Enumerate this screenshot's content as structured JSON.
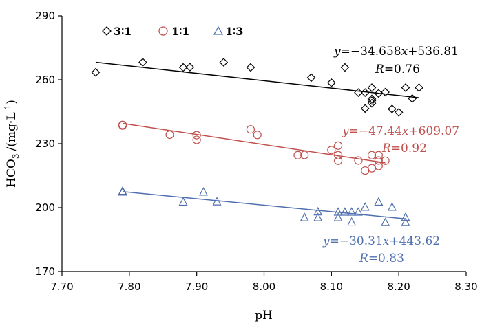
{
  "chart_data": {
    "type": "scatter",
    "title": "",
    "xlabel": "pH",
    "ylabel": "HCO3-/(mg·L-1)",
    "ylabel_parts": {
      "base": "HCO",
      "sub": "3",
      "sup": "-",
      "rest": "/(mg·L",
      "unit_sup": "-1",
      "close": ")"
    },
    "xlim": [
      7.7,
      8.3
    ],
    "ylim": [
      170,
      290
    ],
    "xticks": [
      7.7,
      7.8,
      7.9,
      8.0,
      8.1,
      8.2,
      8.3
    ],
    "xtick_labels": [
      "7.70",
      "7.80",
      "7.90",
      "8.00",
      "8.10",
      "8.20",
      "8.30"
    ],
    "yticks": [
      170,
      200,
      230,
      260,
      290
    ],
    "ytick_labels": [
      "170",
      "200",
      "230",
      "260",
      "290"
    ],
    "legend_position": "top-left",
    "series": [
      {
        "name": "3∶1",
        "color": "#000000",
        "marker": "diamond",
        "x": [
          7.75,
          7.82,
          7.88,
          7.89,
          7.94,
          7.98,
          8.07,
          8.1,
          8.12,
          8.14,
          8.15,
          8.15,
          8.16,
          8.16,
          8.16,
          8.16,
          8.17,
          8.18,
          8.19,
          8.2,
          8.21,
          8.22,
          8.23
        ],
        "y": [
          263.5,
          268.2,
          265.8,
          265.9,
          268.2,
          265.8,
          261.0,
          258.6,
          265.8,
          254.0,
          254.0,
          246.5,
          249.0,
          250.2,
          251.0,
          256.3,
          253.6,
          254.2,
          246.3,
          244.7,
          256.3,
          251.2,
          256.3
        ],
        "fit": {
          "slope": -34.658,
          "intercept": 536.81,
          "x_range": [
            7.75,
            8.23
          ]
        },
        "equation": "y=−34.658x+536.81",
        "eq_y": "y",
        "eq_prefix": "=−34.658",
        "eq_x": "x",
        "eq_suffix": "+536.81",
        "r_label": "R",
        "r_value": "=0.76"
      },
      {
        "name": "1∶1",
        "color": "#c0504d",
        "marker": "circle",
        "x": [
          7.79,
          7.79,
          7.86,
          7.9,
          7.9,
          7.98,
          7.99,
          8.05,
          8.06,
          8.1,
          8.11,
          8.11,
          8.11,
          8.14,
          8.15,
          8.16,
          8.16,
          8.17,
          8.17,
          8.17,
          8.18
        ],
        "y": [
          238.8,
          238.5,
          234.2,
          234.0,
          231.8,
          236.7,
          234.1,
          224.6,
          224.7,
          227.0,
          229.1,
          224.6,
          222.0,
          222.1,
          217.4,
          224.6,
          218.5,
          224.6,
          222.1,
          219.5,
          222.0
        ],
        "fit": {
          "slope": -47.44,
          "intercept": 609.07,
          "x_range": [
            7.79,
            8.18
          ]
        },
        "equation": "y=−47.44x+609.07",
        "eq_y": "y",
        "eq_prefix": "=−47.44",
        "eq_x": "x",
        "eq_suffix": "+609.07",
        "r_label": "R",
        "r_value": "=0.92"
      },
      {
        "name": "1∶3",
        "color": "#4f6faf",
        "marker": "triangle",
        "x": [
          7.79,
          7.79,
          7.88,
          7.91,
          7.93,
          8.06,
          8.08,
          8.08,
          8.11,
          8.11,
          8.12,
          8.13,
          8.13,
          8.14,
          8.15,
          8.17,
          8.18,
          8.19,
          8.21,
          8.21
        ],
        "y": [
          207.3,
          207.7,
          202.6,
          207.3,
          202.7,
          195.3,
          198.0,
          195.3,
          197.9,
          195.3,
          197.9,
          197.9,
          193.2,
          197.9,
          200.2,
          202.6,
          193.0,
          200.2,
          195.4,
          193.0
        ],
        "fit": {
          "slope": -30.31,
          "intercept": 443.62,
          "x_range": [
            7.79,
            8.21
          ]
        },
        "equation": "y=−30.31x+443.62",
        "eq_y": "y",
        "eq_prefix": "=−30.31",
        "eq_x": "x",
        "eq_suffix": "+443.62",
        "r_label": "R",
        "r_value": "=0.83"
      }
    ]
  }
}
